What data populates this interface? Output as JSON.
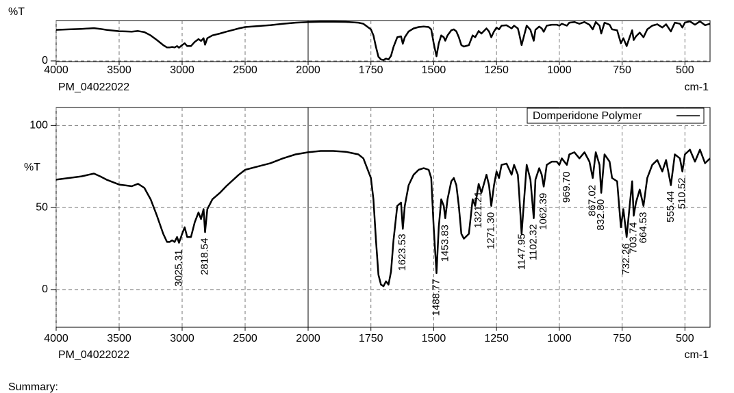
{
  "chart_data": [
    {
      "type": "line",
      "ylabel": "%T",
      "xlabel": "cm-1",
      "sample": "PM_04022022",
      "xlim": [
        4000,
        400
      ],
      "x_scale_break": 2000,
      "ylim": [
        -1.5,
        87
      ],
      "xticks": [
        4000,
        3500,
        3000,
        2500,
        2000,
        1750,
        1500,
        1250,
        1000,
        750,
        500
      ],
      "yticks": [
        0
      ],
      "grid": true,
      "series": [
        {
          "color": "#000000",
          "x": [
            4000,
            3900,
            3800,
            3700,
            3650,
            3600,
            3500,
            3450,
            3400,
            3350,
            3320,
            3300,
            3250,
            3200,
            3150,
            3120,
            3100,
            3080,
            3060,
            3040,
            3025,
            3000,
            2980,
            2960,
            2930,
            2900,
            2870,
            2850,
            2830,
            2818,
            2800,
            2760,
            2700,
            2650,
            2600,
            2550,
            2500,
            2400,
            2300,
            2200,
            2100,
            2000,
            1950,
            1900,
            1850,
            1800,
            1780,
            1750,
            1740,
            1730,
            1720,
            1710,
            1700,
            1690,
            1680,
            1670,
            1660,
            1645,
            1630,
            1623,
            1615,
            1600,
            1580,
            1560,
            1540,
            1520,
            1510,
            1500,
            1489,
            1480,
            1470,
            1460,
            1454,
            1445,
            1430,
            1420,
            1410,
            1400,
            1390,
            1380,
            1360,
            1345,
            1335,
            1321,
            1310,
            1290,
            1280,
            1271,
            1260,
            1250,
            1240,
            1230,
            1210,
            1190,
            1180,
            1165,
            1160,
            1150,
            1140,
            1130,
            1115,
            1102,
            1095,
            1080,
            1070,
            1062,
            1050,
            1030,
            1010,
            1000,
            990,
            970,
            960,
            940,
            920,
            900,
            880,
            867,
            855,
            840,
            833,
            820,
            800,
            790,
            770,
            755,
            745,
            732,
            720,
            710,
            704,
            695,
            680,
            665,
            650,
            630,
            610,
            590,
            575,
            556,
            540,
            520,
            510,
            500,
            480,
            460,
            440,
            420,
            400
          ],
          "values": [
            67,
            68,
            69,
            70.7,
            69,
            67,
            64,
            63.5,
            63,
            64.5,
            63,
            62,
            55,
            45,
            34,
            29,
            29,
            30,
            29,
            32,
            28.5,
            34,
            38,
            32,
            32,
            41,
            47,
            43,
            49,
            35,
            49,
            55,
            59,
            63,
            66.5,
            70,
            73,
            75,
            77,
            80,
            82.4,
            83.7,
            84.5,
            84.5,
            84,
            82.4,
            80,
            68,
            55,
            30,
            9,
            3,
            2,
            5,
            3,
            11,
            30,
            51,
            53,
            37,
            51,
            63.6,
            70,
            73,
            74,
            73,
            68,
            38,
            10,
            38,
            55,
            51,
            43.5,
            55,
            66,
            68,
            63.6,
            51,
            34,
            31,
            34,
            55,
            51,
            64.4,
            59,
            70,
            63.6,
            51,
            63.6,
            72,
            68,
            76,
            76.8,
            70,
            76,
            70,
            59,
            34,
            55,
            76,
            67,
            43.5,
            67,
            74,
            70,
            62.8,
            76,
            78,
            78,
            76,
            80,
            76,
            82.4,
            83.7,
            80,
            83.7,
            78,
            68,
            83.7,
            76,
            59,
            82.4,
            78,
            68,
            66,
            38,
            49,
            32,
            51,
            66,
            45,
            53,
            61,
            51,
            68,
            76,
            79,
            72,
            79,
            63.6,
            82.4,
            80,
            72,
            82.4,
            85.3,
            78,
            85.3,
            77,
            80
          ]
        }
      ]
    },
    {
      "type": "line",
      "ylabel": "%T",
      "xlabel": "cm-1",
      "sample": "PM_04022022",
      "legend": "top-right",
      "xlim": [
        4000,
        400
      ],
      "x_scale_break": 2000,
      "ylim": [
        -23,
        111
      ],
      "xticks": [
        4000,
        3500,
        3000,
        2500,
        2000,
        1750,
        1500,
        1250,
        1000,
        750,
        500
      ],
      "yticks": [
        0,
        50,
        100
      ],
      "grid": true,
      "series": [
        {
          "name": "Domperidone Polymer",
          "color": "#000000",
          "x": [
            4000,
            3900,
            3800,
            3700,
            3650,
            3600,
            3500,
            3450,
            3400,
            3350,
            3320,
            3300,
            3250,
            3200,
            3150,
            3120,
            3100,
            3080,
            3060,
            3040,
            3025,
            3000,
            2980,
            2960,
            2930,
            2900,
            2870,
            2850,
            2830,
            2818,
            2800,
            2760,
            2700,
            2650,
            2600,
            2550,
            2500,
            2400,
            2300,
            2200,
            2100,
            2000,
            1950,
            1900,
            1850,
            1800,
            1780,
            1750,
            1740,
            1730,
            1720,
            1710,
            1700,
            1690,
            1680,
            1670,
            1660,
            1645,
            1630,
            1623,
            1615,
            1600,
            1580,
            1560,
            1540,
            1520,
            1510,
            1500,
            1489,
            1480,
            1470,
            1460,
            1454,
            1445,
            1430,
            1420,
            1410,
            1400,
            1390,
            1380,
            1360,
            1345,
            1335,
            1321,
            1310,
            1290,
            1280,
            1271,
            1260,
            1250,
            1240,
            1230,
            1210,
            1190,
            1180,
            1165,
            1160,
            1150,
            1140,
            1130,
            1115,
            1102,
            1095,
            1080,
            1070,
            1062,
            1050,
            1030,
            1010,
            1000,
            990,
            970,
            960,
            940,
            920,
            900,
            880,
            867,
            855,
            840,
            833,
            820,
            800,
            790,
            770,
            755,
            745,
            732,
            720,
            710,
            704,
            695,
            680,
            665,
            650,
            630,
            610,
            590,
            575,
            556,
            540,
            520,
            510,
            500,
            480,
            460,
            440,
            420,
            400
          ],
          "values": [
            67,
            68,
            69,
            70.7,
            69,
            67,
            64,
            63.5,
            63,
            64.5,
            63,
            62,
            55,
            45,
            34,
            29,
            29,
            30,
            29,
            32,
            28.5,
            34,
            38,
            32,
            32,
            41,
            47,
            43,
            49,
            35,
            49,
            55,
            59,
            63,
            66.5,
            70,
            73,
            75,
            77,
            80,
            82.4,
            83.7,
            84.5,
            84.5,
            84,
            82.4,
            80,
            68,
            55,
            30,
            9,
            3,
            2,
            5,
            3,
            11,
            30,
            51,
            53,
            37,
            51,
            63.6,
            70,
            73,
            74,
            73,
            68,
            38,
            10,
            38,
            55,
            51,
            43.5,
            55,
            66,
            68,
            63.6,
            51,
            34,
            31,
            34,
            55,
            51,
            64.4,
            59,
            70,
            63.6,
            51,
            63.6,
            72,
            68,
            76,
            76.8,
            70,
            76,
            70,
            59,
            34,
            55,
            76,
            67,
            43.5,
            67,
            74,
            70,
            62.8,
            76,
            78,
            78,
            76,
            80,
            76,
            82.4,
            83.7,
            80,
            83.7,
            78,
            68,
            83.7,
            76,
            59,
            82.4,
            78,
            68,
            66,
            38,
            49,
            32,
            51,
            66,
            45,
            53,
            61,
            51,
            68,
            76,
            79,
            72,
            79,
            63.6,
            82.4,
            80,
            72,
            82.4,
            85.3,
            78,
            85.3,
            77,
            80
          ]
        }
      ],
      "peaks": [
        3025.31,
        2818.54,
        1623.53,
        1488.77,
        1453.83,
        1321.21,
        {
          "value": 1271.3,
          "label": "1271.30"
        },
        1147.95,
        1102.32,
        1062.39,
        {
          "value": 969.7,
          "label": "969.70"
        },
        867.02,
        {
          "value": 832.8,
          "label": "832.80"
        },
        732.26,
        703.74,
        664.53,
        555.44,
        510.52
      ]
    }
  ],
  "footer": "Summary:"
}
